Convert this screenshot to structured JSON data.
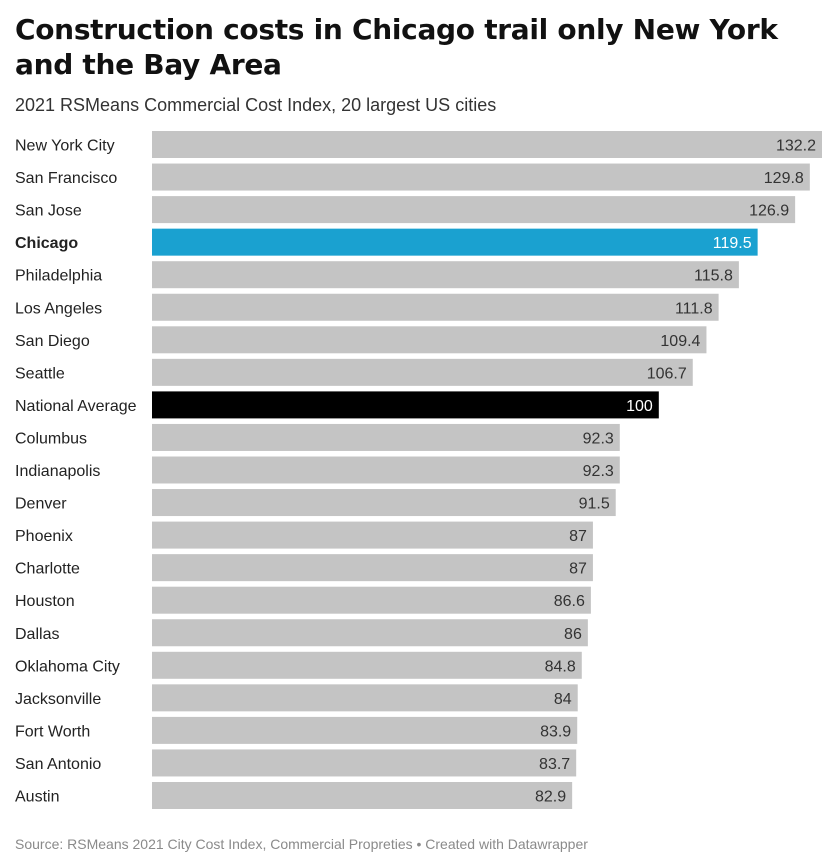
{
  "header": {
    "title": "Construction costs in Chicago trail only New York and the Bay Area",
    "subtitle": "2021 RSMeans Commercial Cost Index, 20 largest US cities"
  },
  "footer": {
    "source": "Source: RSMeans 2021 City Cost Index, Commercial Propreties • Created with Datawrapper"
  },
  "chart_data": {
    "type": "bar",
    "orientation": "horizontal",
    "categories": [
      "New York City",
      "San Francisco",
      "San Jose",
      "Chicago",
      "Philadelphia",
      "Los Angeles",
      "San Diego",
      "Seattle",
      "National Average",
      "Columbus",
      "Indianapolis",
      "Denver",
      "Phoenix",
      "Charlotte",
      "Houston",
      "Dallas",
      "Oklahoma City",
      "Jacksonville",
      "Fort Worth",
      "San Antonio",
      "Austin"
    ],
    "value_labels": [
      "132.2",
      "129.8",
      "126.9",
      "119.5",
      "115.8",
      "111.8",
      "109.4",
      "106.7",
      "100",
      "92.3",
      "92.3",
      "91.5",
      "87",
      "87",
      "86.6",
      "86",
      "84.8",
      "84",
      "83.9",
      "83.7",
      "82.9"
    ],
    "values": [
      132.2,
      129.8,
      126.9,
      119.5,
      115.8,
      111.8,
      109.4,
      106.7,
      100,
      92.3,
      92.3,
      91.5,
      87,
      87,
      86.6,
      86,
      84.8,
      84,
      83.9,
      83.7,
      82.9
    ],
    "xlim": [
      0,
      132.2
    ],
    "highlight": {
      "Chicago": "#1aa1d0",
      "National Average": "#000000"
    },
    "default_bar_color": "#c4c4c4",
    "grid": false,
    "legend": "none"
  }
}
